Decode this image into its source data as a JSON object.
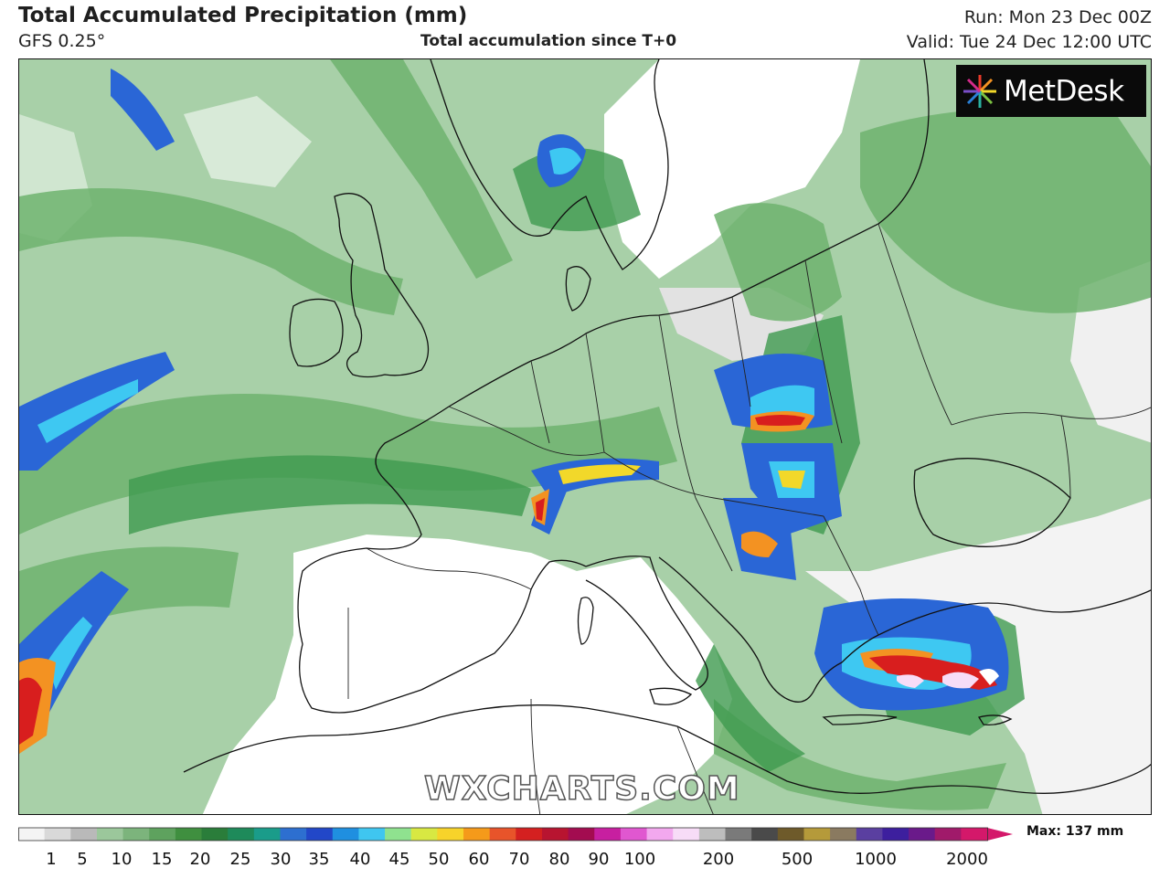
{
  "header": {
    "title": "Total Accumulated Precipitation (mm)",
    "model": "GFS 0.25°",
    "subtitle": "Total accumulation since T+0",
    "run": "Run: Mon 23 Dec 00Z",
    "valid": "Valid: Tue 24 Dec 12:00 UTC"
  },
  "brand": {
    "logo_text": "MetDesk",
    "watermark": "WXCHARTS.COM"
  },
  "legend": {
    "max_label": "Max: 137 mm",
    "tick_labels": [
      "1",
      "5",
      "10",
      "15",
      "20",
      "25",
      "30",
      "35",
      "40",
      "45",
      "50",
      "60",
      "70",
      "80",
      "90",
      "100",
      "200",
      "500",
      "1000",
      "2000"
    ],
    "colors": [
      "#f4f4f4",
      "#d9d9d9",
      "#b9b9b9",
      "#9bc79b",
      "#7cb47c",
      "#5ea25e",
      "#3f8f3f",
      "#2a7d3a",
      "#1e8a5a",
      "#1a9c8a",
      "#2d6fd0",
      "#2247c8",
      "#1f8fe0",
      "#3fc6f0",
      "#8fe28f",
      "#d8e842",
      "#f7d32a",
      "#f59a1a",
      "#e8542a",
      "#d42020",
      "#b81430",
      "#a30c50",
      "#c71fa0",
      "#e057d0",
      "#f2a8ee",
      "#f7dcf7",
      "#bdbdbd",
      "#7a7a7a",
      "#4a4a4a",
      "#6e5a2a",
      "#b59a3a",
      "#8a7a60",
      "#5a3fa0",
      "#3d1f9e",
      "#6a1a8a",
      "#a01a6a",
      "#d4186a"
    ]
  },
  "map_colors": {
    "sea_land_bg": "#a9cfa9",
    "green_light": "#9ccc9c",
    "green_mid": "#6fb36f",
    "green_dark": "#3f9a4f",
    "teal": "#2f9f8f",
    "blue": "#2a66d6",
    "cyan": "#3ec8f2",
    "yellow": "#f2d82a",
    "orange": "#f39222",
    "red": "#d81e1e",
    "dark_red": "#9a0f2a",
    "white": "#ffffff",
    "grey": "#d7d7d7",
    "border_line": "#111111"
  }
}
